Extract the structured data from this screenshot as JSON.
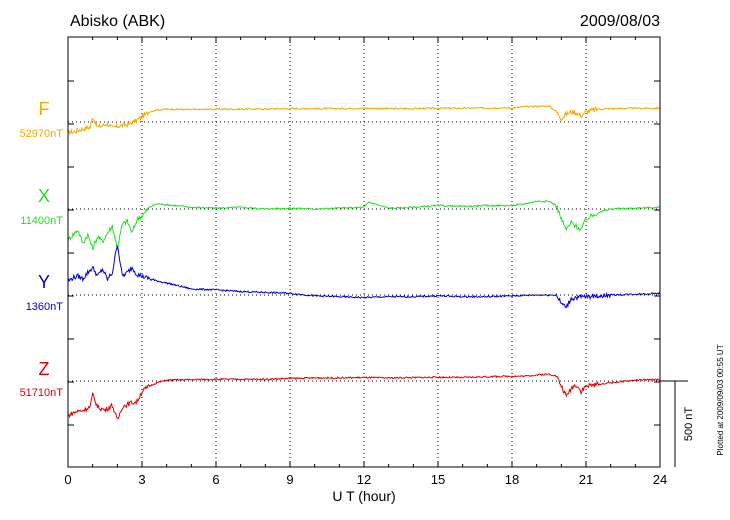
{
  "header": {
    "station": "Abisko (ABK)",
    "date": "2009/08/03"
  },
  "footer": {
    "plotted_note": "Plotted at 2009/09/03 00:55 UT"
  },
  "scale_bar": {
    "value": 500,
    "label": "500 nT"
  },
  "chart_data": {
    "type": "line",
    "title": "Abisko (ABK)",
    "xlabel": "U T (hour)",
    "xlim": [
      0,
      24
    ],
    "xticks": [
      "0",
      "3",
      "6",
      "9",
      "12",
      "15",
      "18",
      "21",
      "24"
    ],
    "grid": "dotted vertical lines every 3 h; dotted baseline per component",
    "y_unit": "nT",
    "offset_scale_nT": [
      -250,
      250
    ],
    "series": [
      {
        "name": "F",
        "baseline_label": "52970nT",
        "color": "#f5a800",
        "x": [
          0,
          0.3,
          0.6,
          0.9,
          1.0,
          1.2,
          1.4,
          1.6,
          1.8,
          2.0,
          2.2,
          2.5,
          2.8,
          3.0,
          3.3,
          3.6,
          4,
          5,
          6,
          7,
          8,
          9,
          10,
          11,
          12,
          13,
          14,
          15,
          16,
          17,
          18,
          18.5,
          19,
          19.5,
          19.8,
          20.0,
          20.2,
          20.4,
          20.6,
          20.8,
          21.0,
          21.5,
          22,
          23,
          24
        ],
        "y": [
          -60,
          -55,
          -40,
          -30,
          30,
          -30,
          -20,
          -10,
          -35,
          -25,
          -20,
          -10,
          10,
          30,
          60,
          70,
          75,
          72,
          75,
          75,
          76,
          78,
          78,
          78,
          80,
          78,
          78,
          80,
          80,
          82,
          82,
          88,
          92,
          92,
          60,
          20,
          45,
          60,
          55,
          35,
          60,
          75,
          78,
          80,
          80
        ]
      },
      {
        "name": "X",
        "baseline_label": "11400nT",
        "color": "#22dd22",
        "x": [
          0,
          0.2,
          0.4,
          0.6,
          0.8,
          1.0,
          1.2,
          1.4,
          1.6,
          1.8,
          2.0,
          2.2,
          2.4,
          2.6,
          2.8,
          3.0,
          3.3,
          3.6,
          4,
          5,
          6,
          7,
          8,
          9,
          10,
          11,
          12,
          12.2,
          13,
          14,
          15,
          16,
          17,
          18,
          18.5,
          19,
          19.5,
          19.8,
          20.0,
          20.2,
          20.4,
          20.6,
          20.8,
          21.0,
          21.5,
          22,
          23,
          24
        ],
        "y": [
          -180,
          -150,
          -120,
          -200,
          -150,
          -230,
          -160,
          -190,
          -140,
          -100,
          -230,
          -90,
          -70,
          -140,
          -60,
          -40,
          10,
          30,
          25,
          10,
          5,
          10,
          0,
          5,
          0,
          5,
          10,
          40,
          5,
          10,
          20,
          15,
          20,
          20,
          30,
          45,
          45,
          20,
          -60,
          -120,
          -80,
          -100,
          -120,
          -60,
          -20,
          0,
          5,
          10
        ]
      },
      {
        "name": "Y",
        "baseline_label": "1360nT",
        "color": "#0000cc",
        "x": [
          0,
          0.2,
          0.4,
          0.6,
          0.8,
          1.0,
          1.2,
          1.4,
          1.6,
          1.8,
          2.0,
          2.2,
          2.4,
          2.6,
          2.8,
          3.0,
          3.5,
          4,
          5,
          6,
          7,
          8,
          9,
          10,
          11,
          12,
          13,
          14,
          15,
          16,
          17,
          18,
          19,
          19.8,
          20.0,
          20.2,
          20.4,
          20.6,
          21,
          22,
          23,
          24
        ],
        "y": [
          80,
          100,
          110,
          95,
          130,
          160,
          110,
          150,
          90,
          130,
          300,
          110,
          130,
          160,
          120,
          110,
          85,
          70,
          35,
          30,
          20,
          15,
          10,
          -5,
          -10,
          -15,
          -10,
          -10,
          -5,
          -10,
          -10,
          -5,
          0,
          0,
          -50,
          -70,
          -20,
          -15,
          -10,
          0,
          5,
          10
        ]
      },
      {
        "name": "Z",
        "baseline_label": "51710nT",
        "color": "#dd0000",
        "x": [
          0,
          0.3,
          0.6,
          0.9,
          1.0,
          1.2,
          1.5,
          1.8,
          2.0,
          2.2,
          2.5,
          2.8,
          3.0,
          3.3,
          3.6,
          4,
          5,
          6,
          7,
          8,
          9,
          10,
          11,
          12,
          13,
          14,
          15,
          16,
          17,
          18,
          18.5,
          19,
          19.5,
          19.8,
          20.0,
          20.2,
          20.4,
          20.6,
          20.8,
          21.0,
          21.5,
          22,
          23,
          24
        ],
        "y": [
          -200,
          -180,
          -170,
          -150,
          -80,
          -150,
          -170,
          -140,
          -230,
          -150,
          -130,
          -120,
          -60,
          -30,
          -10,
          5,
          8,
          10,
          10,
          10,
          15,
          18,
          18,
          20,
          18,
          20,
          22,
          20,
          25,
          28,
          28,
          35,
          40,
          30,
          -30,
          -90,
          -40,
          -20,
          -60,
          -30,
          -20,
          -10,
          5,
          8
        ]
      }
    ]
  }
}
